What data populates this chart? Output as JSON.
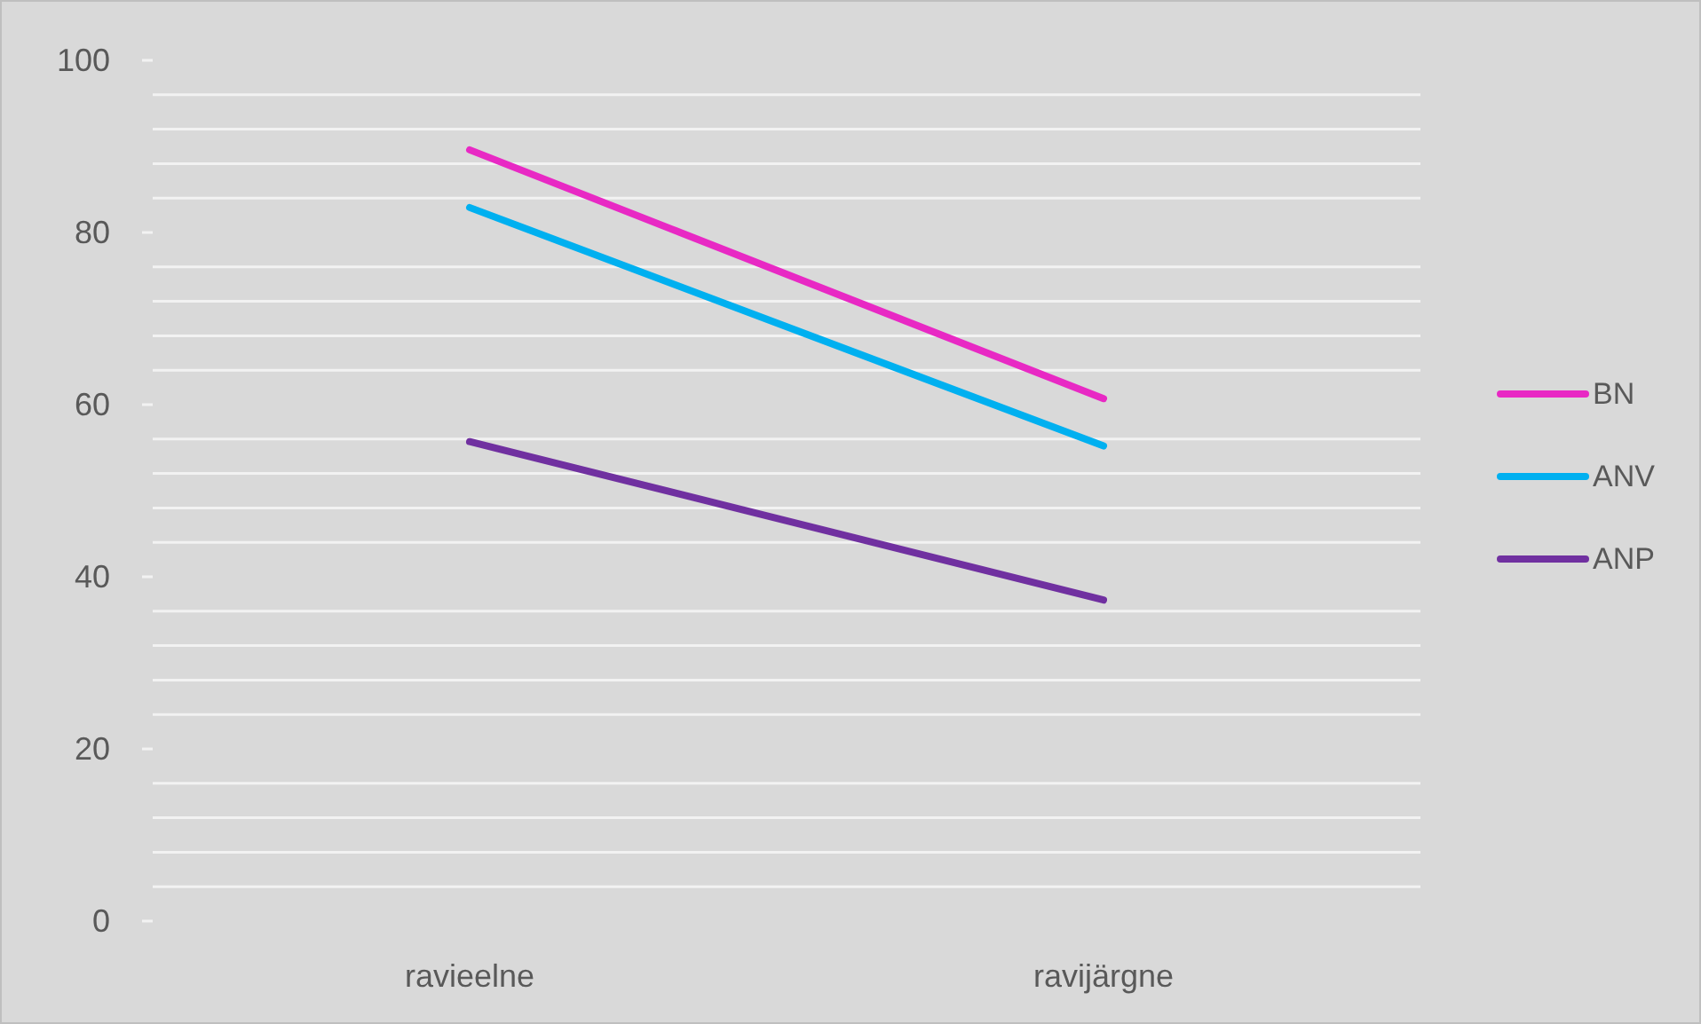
{
  "chart_data": {
    "type": "line",
    "categories": [
      "ravieelne",
      "ravijärgne"
    ],
    "series": [
      {
        "name": "BN",
        "color": "#e829c4",
        "values": [
          89.6,
          60.7
        ]
      },
      {
        "name": "ANV",
        "color": "#00b0f0",
        "values": [
          82.9,
          55.2
        ]
      },
      {
        "name": "ANP",
        "color": "#7030a0",
        "values": [
          55.7,
          37.3
        ]
      }
    ],
    "ylim": [
      0,
      100
    ],
    "yticks": [
      0,
      {
        "value": 4,
        "label": null
      },
      {
        "value": 8,
        "label": null
      },
      {
        "value": 12,
        "label": null
      },
      {
        "value": 16,
        "label": null
      },
      20,
      {
        "value": 24,
        "label": null
      },
      {
        "value": 28,
        "label": null
      },
      {
        "value": 32,
        "label": null
      },
      {
        "value": 36,
        "label": null
      },
      40,
      {
        "value": 44,
        "label": null
      },
      {
        "value": 48,
        "label": null
      },
      {
        "value": 52,
        "label": null
      },
      {
        "value": 56,
        "label": null
      },
      60,
      {
        "value": 64,
        "label": null
      },
      {
        "value": 68,
        "label": null
      },
      {
        "value": 72,
        "label": null
      },
      {
        "value": 76,
        "label": null
      },
      80,
      {
        "value": 84,
        "label": null
      },
      {
        "value": 88,
        "label": null
      },
      {
        "value": 92,
        "label": null
      },
      {
        "value": 96,
        "label": null
      },
      100
    ],
    "grid": true,
    "legend": "right",
    "marker": "none",
    "line_style": "solid"
  }
}
